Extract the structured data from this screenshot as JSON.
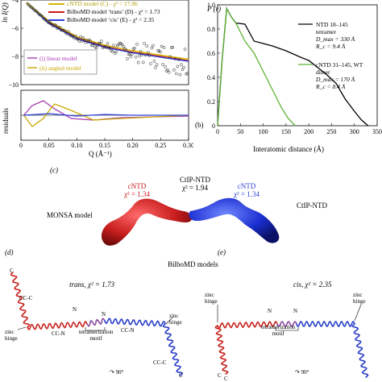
{
  "panel_a": {
    "ylabel": "ln I(Q)",
    "ylabel_resid": "residuals",
    "xlabel": "Q (Å⁻¹)",
    "legend": [
      {
        "label": "cNTD model (C) - χ² = 17.86",
        "color": "#d4b800"
      },
      {
        "label": "BilboMD model ‘trans’ (D) - χ² = 1.73",
        "color": "#cc1a1a"
      },
      {
        "label": "BilboMD model ‘cis’ (E) - χ² = 2.35",
        "color": "#2d3fd6"
      }
    ],
    "inset_legend": [
      {
        "label": "(i) linear model",
        "color": "#a63ab0"
      },
      {
        "label": "(ii) angled model",
        "color": "#c8a800"
      }
    ]
  },
  "panel_b": {
    "tag": "(b)",
    "ylabel": "P (r)",
    "xlabel": "Interatomic distance (Å)",
    "legend": [
      {
        "name": "NTD 18–145",
        "line2": "tetramer",
        "dmax": "D_max = 330 Å",
        "rc": "R_c = 9.4 Å",
        "color": "#000000"
      },
      {
        "name": "cNTD 31–145, WT",
        "line2": "dimer",
        "dmax": "D_max = 170 Å",
        "rc": "R_c = 8.4 Å",
        "color": "#5cb335"
      }
    ]
  },
  "panel_c": {
    "tag": "(c)",
    "monsa_label": "MONSA model",
    "ctip_label": "CtIP-NTD",
    "center_label": "CtIP-NTD",
    "center_chi": "χ² = 1.94",
    "left_label": "cNTD",
    "left_chi": "χ² = 1.34",
    "right_label": "cNTD",
    "right_chi": "χ² = 1.34"
  },
  "bilbomd_title": "BilboMD models",
  "panel_d": {
    "tag": "(d)",
    "title": "trans, χ² = 1.73",
    "labels": {
      "cc_c_top": "CC-C",
      "zinc": "zinc",
      "hinge": "hinge",
      "cc_n_left": "CC-N",
      "cc_n_right": "CC-N",
      "cc_c_bottom": "CC-C",
      "n1": "N",
      "n2": "N",
      "c_top": "C",
      "c_bottom": "C",
      "tetra1": "tetramerization",
      "tetra2": "motif",
      "zinc_right": "zinc",
      "hinge_right": "hinge",
      "rot": "90°"
    }
  },
  "panel_e": {
    "tag": "(e)",
    "title": "cis, χ² = 2.35",
    "labels": {
      "zinc_left": "zinc",
      "hinge_left": "hinge",
      "zinc_right": "zinc",
      "hinge_right": "hinge",
      "n1": "N",
      "n2": "N",
      "tetra1": "tetramerization",
      "tetra2": "motif",
      "c1": "C",
      "c2": "C",
      "rot": "90°"
    }
  },
  "chart_data": [
    {
      "type": "line",
      "title": "",
      "xlabel": "Q (Å⁻¹)",
      "ylabel": "ln I(Q)",
      "xlim": [
        0,
        0.3
      ],
      "ylim": [
        -10,
        -4
      ],
      "x_ticks": [
        0,
        0.05,
        0.1,
        0.15,
        0.2,
        0.25,
        0.3
      ],
      "y_ticks": [
        -10,
        -8,
        -6,
        -4
      ],
      "series": [
        {
          "name": "BilboMD model ‘trans’ (D) - χ² = 1.73",
          "x": [
            0.01,
            0.05,
            0.1,
            0.15,
            0.2,
            0.25,
            0.3
          ],
          "values": [
            -4.2,
            -5.6,
            -6.7,
            -7.3,
            -7.7,
            -8.0,
            -8.3
          ]
        },
        {
          "name": "BilboMD model ‘cis’ (E) - χ² = 2.35",
          "x": [
            0.01,
            0.05,
            0.1,
            0.15,
            0.2,
            0.25,
            0.3
          ],
          "values": [
            -4.2,
            -5.65,
            -6.75,
            -7.35,
            -7.75,
            -8.05,
            -8.35
          ]
        },
        {
          "name": "cNTD model (C) - χ² = 17.86",
          "x": [
            0.01,
            0.05,
            0.1,
            0.15,
            0.2,
            0.25,
            0.3
          ],
          "values": [
            -4.2,
            -5.5,
            -6.6,
            -7.2,
            -7.6,
            -7.9,
            -8.2
          ]
        }
      ]
    },
    {
      "type": "line",
      "title": "",
      "xlabel": "Interatomic distance (Å)",
      "ylabel": "P (r)",
      "xlim": [
        0,
        350
      ],
      "ylim": [
        0,
        1.0
      ],
      "x_ticks": [
        0,
        50,
        100,
        150,
        200,
        250,
        300,
        350
      ],
      "y_ticks": [
        0,
        0.2,
        0.4,
        0.6,
        0.8,
        1.0
      ],
      "series": [
        {
          "name": "NTD 18–145 tetramer",
          "x": [
            0,
            10,
            20,
            30,
            40,
            60,
            80,
            100,
            120,
            150,
            180,
            200,
            220,
            240,
            260,
            280,
            300,
            315,
            330
          ],
          "values": [
            0,
            0.55,
            0.97,
            0.9,
            0.85,
            0.84,
            0.7,
            0.68,
            0.66,
            0.62,
            0.57,
            0.54,
            0.48,
            0.42,
            0.35,
            0.22,
            0.12,
            0.05,
            0
          ]
        },
        {
          "name": "cNTD 31–145, WT dimer",
          "x": [
            0,
            10,
            20,
            30,
            40,
            60,
            80,
            100,
            120,
            140,
            155,
            170
          ],
          "values": [
            0,
            0.55,
            0.97,
            0.9,
            0.85,
            0.7,
            0.6,
            0.45,
            0.3,
            0.15,
            0.06,
            0
          ]
        }
      ]
    }
  ]
}
